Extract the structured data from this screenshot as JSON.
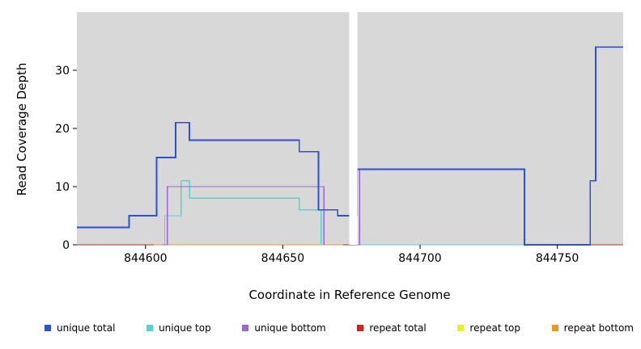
{
  "chart_data": {
    "type": "line",
    "interpolation": "step-after",
    "title": "",
    "xlabel": "Coordinate in Reference Genome",
    "ylabel": "Read Coverage Depth",
    "xlim": [
      844575,
      844774
    ],
    "ylim": [
      0,
      40
    ],
    "x_ticks": [
      844600,
      844650,
      844700,
      844750
    ],
    "y_ticks": [
      0,
      10,
      20,
      30
    ],
    "grid": false,
    "legend_position": "bottom",
    "panel_color": "#d8d8d8",
    "gap_region": [
      844674.2,
      844677.2
    ],
    "series": [
      {
        "name": "repeat top",
        "color": "#f0ee20",
        "width": 1.4,
        "segments": [
          [
            [
              844575,
              0
            ],
            [
              844774,
              0
            ]
          ]
        ]
      },
      {
        "name": "repeat total",
        "color": "#d22319",
        "width": 1.4,
        "segments": [
          [
            [
              844575,
              0
            ],
            [
              844774,
              0
            ]
          ]
        ]
      },
      {
        "name": "repeat bottom",
        "color": "#f0981e",
        "width": 1.4,
        "segments": [
          [
            [
              844603,
              0
            ],
            [
              844672,
              0
            ]
          ]
        ]
      },
      {
        "name": "unique top",
        "color": "#4fd8d2",
        "width": 1.4,
        "segments": [
          [
            [
              844606,
              0
            ],
            [
              844607,
              5
            ],
            [
              844613,
              11
            ],
            [
              844616,
              8
            ],
            [
              844656,
              6
            ],
            [
              844664,
              0
            ]
          ],
          [
            [
              844677,
              0
            ],
            [
              844762,
              0
            ]
          ]
        ]
      },
      {
        "name": "unique bottom",
        "color": "#9b63d6",
        "width": 1.4,
        "segments": [
          [
            [
              844606,
              0
            ],
            [
              844608,
              10
            ],
            [
              844665,
              0
            ]
          ],
          [
            [
              844677,
              0
            ],
            [
              844678,
              13
            ],
            [
              844738,
              0
            ]
          ]
        ]
      },
      {
        "name": "unique total",
        "color": "#2b50d9",
        "width": 1.8,
        "segments": [
          [
            [
              844575,
              3
            ],
            [
              844594,
              5
            ],
            [
              844604,
              15
            ],
            [
              844611,
              21
            ],
            [
              844616,
              18
            ],
            [
              844656,
              16
            ],
            [
              844663,
              6
            ],
            [
              844670,
              5
            ],
            [
              844677,
              13
            ],
            [
              844738,
              0
            ],
            [
              844762,
              11
            ],
            [
              844764,
              34
            ],
            [
              844774,
              34
            ]
          ]
        ]
      }
    ],
    "legend": [
      {
        "label": "unique total",
        "color": "#2b50d9"
      },
      {
        "label": "unique top",
        "color": "#4fd8d2"
      },
      {
        "label": "unique bottom",
        "color": "#9b63d6"
      },
      {
        "label": "repeat total",
        "color": "#d22319"
      },
      {
        "label": "repeat top",
        "color": "#f0ee20"
      },
      {
        "label": "repeat bottom",
        "color": "#f0981e"
      }
    ]
  }
}
